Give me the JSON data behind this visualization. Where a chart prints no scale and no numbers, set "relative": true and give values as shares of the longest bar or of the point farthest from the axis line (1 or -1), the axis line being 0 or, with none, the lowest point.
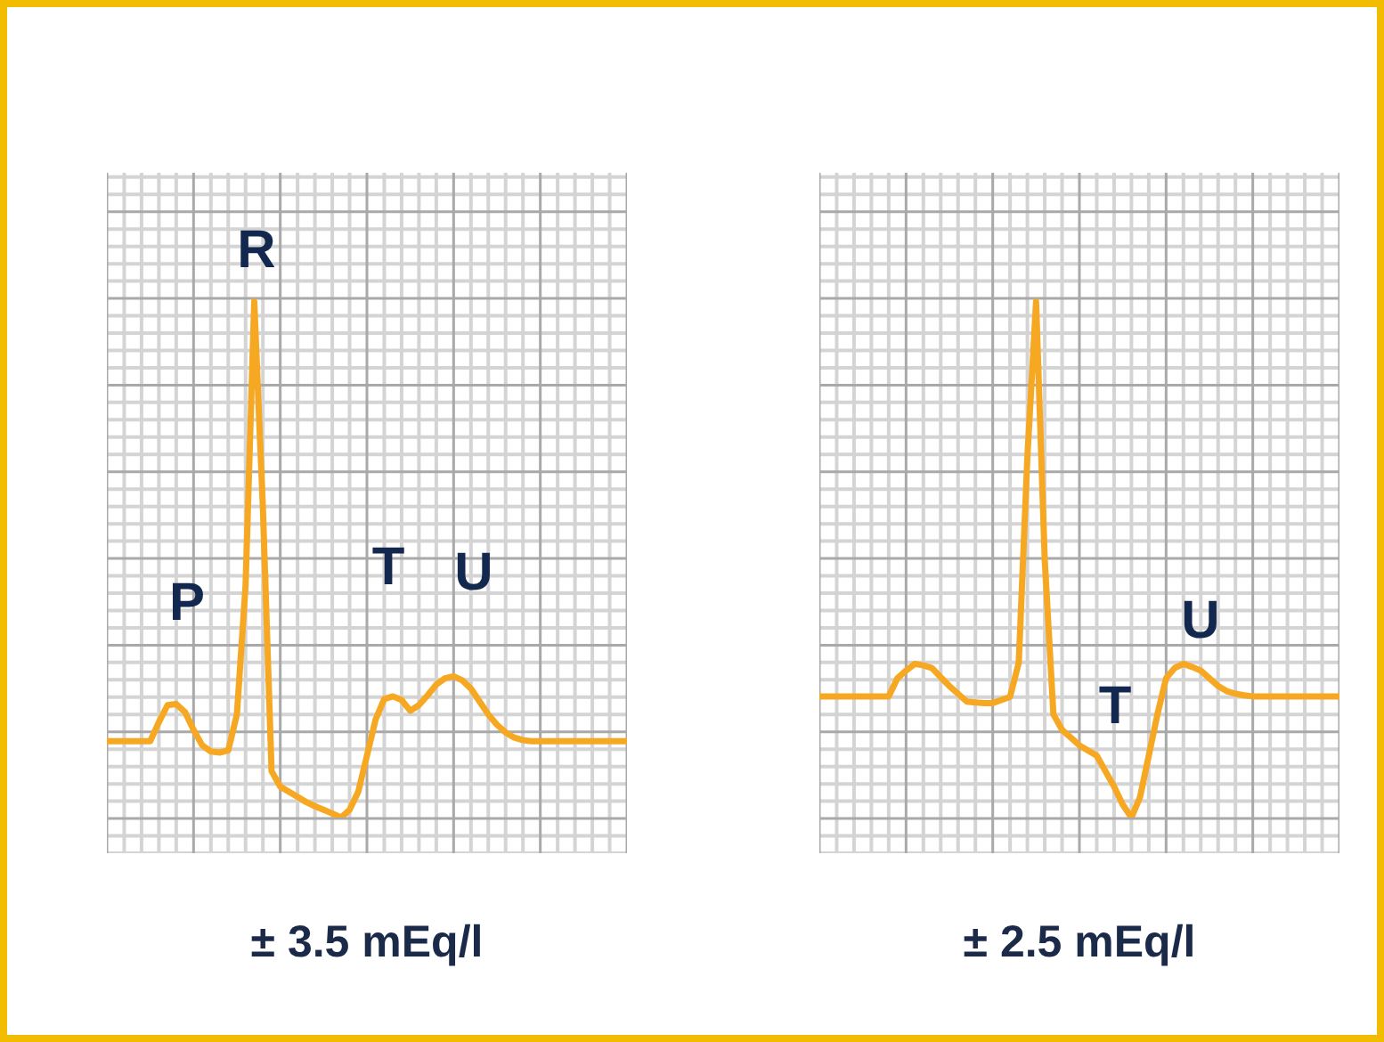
{
  "chart_data": [
    {
      "type": "line",
      "relative": true,
      "grid": true,
      "tick_labels": false,
      "marker": "none",
      "xlabel": "± 3.5 mEq/l",
      "categories": [
        null,
        null,
        null,
        null,
        null,
        null,
        null,
        null,
        null,
        null,
        null,
        null,
        null,
        null,
        null,
        null,
        null,
        null,
        null,
        null,
        null,
        null,
        null,
        null,
        null,
        null,
        null,
        null,
        null,
        null,
        null,
        null,
        null,
        null,
        null,
        null,
        null,
        null,
        null,
        null,
        null,
        null,
        null,
        null,
        null,
        null,
        null,
        null,
        null,
        null,
        null,
        null,
        null,
        null,
        null,
        null,
        null,
        null,
        null,
        null,
        null
      ],
      "series": [
        {
          "color": "#f7a823",
          "values": [
            0.148,
            0.148,
            0.148,
            0.148,
            0.148,
            0.148,
            0.185,
            0.218,
            0.22,
            0.205,
            0.17,
            0.14,
            0.128,
            0.126,
            0.13,
            0.2,
            0.45,
            1.0,
            0.6,
            0.09,
            0.06,
            0.05,
            0.04,
            0.03,
            0.022,
            0.015,
            0.008,
            0,
            0.015,
            0.05,
            0.12,
            0.19,
            0.23,
            0.235,
            0.228,
            0.207,
            0.218,
            0.237,
            0.258,
            0.27,
            0.274,
            0.266,
            0.25,
            0.225,
            0.2,
            0.18,
            0.165,
            0.155,
            0.15,
            0.148,
            0.148,
            0.148,
            0.148,
            0.148,
            0.148,
            0.148,
            0.148,
            0.148,
            0.148,
            0.148,
            0.148
          ]
        }
      ],
      "annotations": [
        "P",
        "R",
        "T",
        "U"
      ]
    },
    {
      "type": "line",
      "relative": true,
      "grid": true,
      "tick_labels": false,
      "marker": "none",
      "xlabel": "± 2.5 mEq/l",
      "categories": [
        null,
        null,
        null,
        null,
        null,
        null,
        null,
        null,
        null,
        null,
        null,
        null,
        null,
        null,
        null,
        null,
        null,
        null,
        null,
        null,
        null,
        null,
        null,
        null,
        null,
        null,
        null,
        null,
        null,
        null,
        null,
        null,
        null,
        null,
        null,
        null,
        null,
        null,
        null,
        null,
        null,
        null,
        null,
        null,
        null,
        null,
        null,
        null,
        null,
        null,
        null,
        null,
        null,
        null,
        null,
        null,
        null,
        null,
        null,
        null,
        null
      ],
      "series": [
        {
          "color": "#f7a823",
          "values": [
            0.235,
            0.235,
            0.235,
            0.235,
            0.235,
            0.235,
            0.235,
            0.235,
            0.235,
            0.27,
            0.285,
            0.298,
            0.295,
            0.29,
            0.272,
            0.255,
            0.24,
            0.225,
            0.223,
            0.222,
            0.222,
            0.228,
            0.234,
            0.3,
            0.7,
            1.0,
            0.5,
            0.2,
            0.17,
            0.155,
            0.14,
            0.13,
            0.12,
            0.09,
            0.06,
            0.025,
            0,
            0.04,
            0.12,
            0.2,
            0.27,
            0.29,
            0.298,
            0.292,
            0.285,
            0.27,
            0.255,
            0.245,
            0.24,
            0.237,
            0.235,
            0.235,
            0.235,
            0.235,
            0.235,
            0.235,
            0.235,
            0.235,
            0.235,
            0.235,
            0.235
          ]
        }
      ],
      "annotations": [
        "T",
        "U"
      ]
    }
  ]
}
